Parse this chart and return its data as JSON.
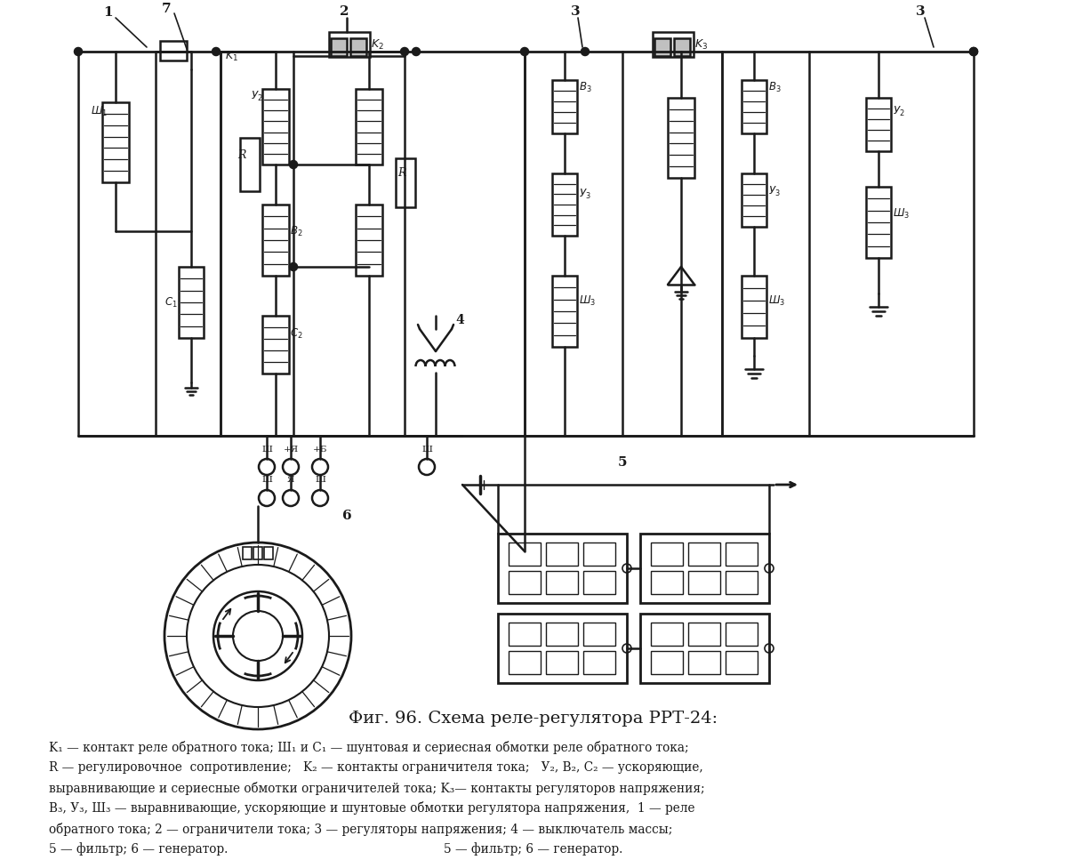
{
  "title": "Фиг. 96. Схема реле-регулятора РРТ-24:",
  "cap1": "K₁ — контакт реле обратного тока; Ш₁ и C₁ — шунтовая и сериесная обмотки реле обратного тока;",
  "cap2": "R — регулировочное  сопротивление;   K₂ — контакты ограничителя тока;   У₂, B₂, C₂ — ускоряющие,",
  "cap3": "выравнивающие и сериесные обмотки ограничителей тока; K₃— контакты регуляторов напряжения;",
  "cap4": "B₃, У₃, Ш₃ — выравнивающие, ускоряющие и шунтовые обмотки регулятора напряжения,  1 — реле",
  "cap5": "обратного тока; 2 — ограничители тока; 3 — регуляторы напряжения; 4 — выключатель массы;",
  "cap6": "5 — фильтр; 6 — генератор.",
  "bg_color": "#ffffff",
  "lc": "#1a1a1a"
}
